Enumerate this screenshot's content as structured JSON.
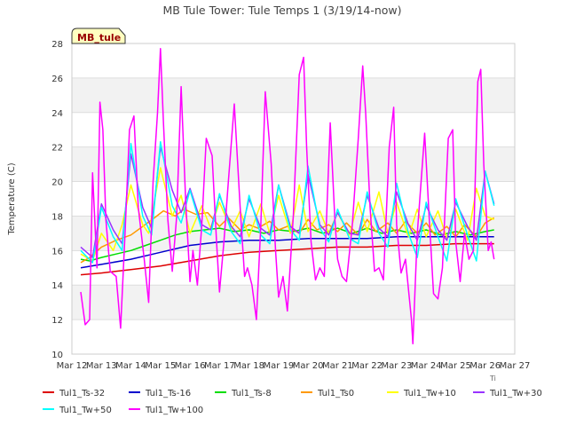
{
  "chart_data": {
    "type": "line",
    "title": "MB Tule Tower: Tule Temps 1 (3/19/14-now)",
    "xlabel": "",
    "ylabel": "Temperature (C)",
    "station_label": "MB_tule",
    "corner_mark": "Ti",
    "x_ticks": [
      {
        "day": 12,
        "label": "Mar 12"
      },
      {
        "day": 13,
        "label": "Mar 13"
      },
      {
        "day": 14,
        "label": "Mar 14"
      },
      {
        "day": 15,
        "label": "Mar 15"
      },
      {
        "day": 16,
        "label": "Mar 16"
      },
      {
        "day": 17,
        "label": "Mar 17"
      },
      {
        "day": 18,
        "label": "Mar 18"
      },
      {
        "day": 19,
        "label": "Mar 19"
      },
      {
        "day": 20,
        "label": "Mar 20"
      },
      {
        "day": 21,
        "label": "Mar 21"
      },
      {
        "day": 22,
        "label": "Mar 22"
      },
      {
        "day": 23,
        "label": "Mar 23"
      },
      {
        "day": 24,
        "label": "Mar 24"
      },
      {
        "day": 25,
        "label": "Mar 25"
      },
      {
        "day": 26,
        "label": "Mar 26"
      },
      {
        "day": 27,
        "label": "Mar 27"
      }
    ],
    "xlim": [
      12,
      27
    ],
    "y_ticks": [
      10,
      12,
      14,
      16,
      18,
      20,
      22,
      24,
      26,
      28
    ],
    "ylim": [
      10,
      28
    ],
    "grid": true,
    "legend_position": "bottom",
    "series": [
      {
        "name": "Tul1_Ts-32",
        "color": "#dd0000",
        "x": [
          12.3,
          13,
          14,
          15,
          16,
          17,
          18,
          19,
          20,
          21,
          22,
          23,
          24,
          25,
          26,
          26.3
        ],
        "y": [
          14.6,
          14.7,
          14.9,
          15.1,
          15.4,
          15.7,
          15.9,
          16.0,
          16.1,
          16.2,
          16.2,
          16.3,
          16.3,
          16.4,
          16.4,
          16.4
        ]
      },
      {
        "name": "Tul1_Ts-16",
        "color": "#0000cc",
        "x": [
          12.3,
          13,
          14,
          15,
          16,
          17,
          18,
          19,
          20,
          21,
          22,
          23,
          24,
          25,
          26,
          26.3
        ],
        "y": [
          15.0,
          15.2,
          15.5,
          15.9,
          16.3,
          16.5,
          16.6,
          16.6,
          16.7,
          16.7,
          16.7,
          16.8,
          16.8,
          16.8,
          16.8,
          16.8
        ]
      },
      {
        "name": "Tul1_Ts-8",
        "color": "#00dd00",
        "x": [
          12.3,
          12.6,
          13,
          13.5,
          14,
          14.5,
          15,
          15.5,
          16,
          16.5,
          17,
          17.5,
          18,
          18.5,
          19,
          19.5,
          20,
          20.5,
          21,
          21.5,
          22,
          22.5,
          23,
          23.5,
          24,
          24.5,
          25,
          25.5,
          26,
          26.3
        ],
        "y": [
          15.5,
          15.4,
          15.6,
          15.8,
          16.0,
          16.3,
          16.6,
          16.9,
          17.1,
          17.2,
          17.3,
          17.1,
          17.2,
          17.0,
          17.2,
          17.1,
          17.3,
          17.0,
          17.3,
          17.0,
          17.3,
          17.0,
          17.2,
          17.0,
          17.2,
          16.9,
          17.1,
          16.9,
          17.1,
          17.2
        ]
      },
      {
        "name": "Tul1_Ts0",
        "color": "#ff9900",
        "x": [
          12.3,
          12.6,
          13,
          13.5,
          14,
          14.4,
          14.8,
          15.1,
          15.5,
          15.8,
          16.2,
          16.6,
          17,
          17.3,
          17.7,
          18,
          18.3,
          18.7,
          19,
          19.3,
          19.7,
          20,
          20.3,
          20.7,
          21,
          21.3,
          21.7,
          22,
          22.3,
          22.7,
          23,
          23.3,
          23.7,
          24,
          24.3,
          24.7,
          25,
          25.3,
          25.7,
          26,
          26.3
        ],
        "y": [
          15.3,
          15.6,
          16.2,
          16.6,
          16.9,
          17.4,
          17.9,
          18.3,
          18.0,
          18.4,
          18.1,
          18.2,
          17.4,
          17.9,
          17.2,
          17.5,
          17.3,
          17.7,
          17.2,
          17.4,
          17.0,
          17.8,
          17.2,
          17.5,
          17.1,
          17.6,
          16.9,
          17.8,
          17.1,
          17.6,
          17.0,
          17.7,
          17.0,
          17.6,
          16.9,
          17.4,
          16.8,
          17.5,
          16.8,
          17.6,
          17.9
        ]
      },
      {
        "name": "Tul1_Tw+10",
        "color": "#ffff00",
        "x": [
          12.3,
          12.7,
          13,
          13.4,
          13.7,
          14,
          14.4,
          14.6,
          15,
          15.4,
          15.7,
          16,
          16.4,
          16.7,
          17,
          17.4,
          17.7,
          18,
          18.4,
          18.7,
          19,
          19.4,
          19.7,
          20,
          20.4,
          20.7,
          21,
          21.4,
          21.7,
          22,
          22.4,
          22.7,
          23,
          23.4,
          23.7,
          24,
          24.4,
          24.7,
          25,
          25.4,
          25.7,
          26,
          26.3
        ],
        "y": [
          15.8,
          15.4,
          17.0,
          16.0,
          17.5,
          19.8,
          17.5,
          17.0,
          20.8,
          18.0,
          19.2,
          17.0,
          18.6,
          17.3,
          18.8,
          17.2,
          18.3,
          16.8,
          18.7,
          17.0,
          19.2,
          17.0,
          19.8,
          17.1,
          18.3,
          17.0,
          18.2,
          16.9,
          18.8,
          17.1,
          19.4,
          17.0,
          18.8,
          16.8,
          18.4,
          16.8,
          18.3,
          16.7,
          18.4,
          16.6,
          19.6,
          18.0,
          17.8
        ]
      },
      {
        "name": "Tul1_Tw+30",
        "color": "#9933ff",
        "x": [
          12.3,
          12.7,
          13,
          13.4,
          13.7,
          14,
          14.4,
          14.7,
          15,
          15.4,
          15.7,
          16,
          16.4,
          16.7,
          17,
          17.4,
          17.7,
          18,
          18.4,
          18.7,
          19,
          19.4,
          19.7,
          20,
          20.4,
          20.7,
          21,
          21.4,
          21.7,
          22,
          22.4,
          22.7,
          23,
          23.4,
          23.7,
          24,
          24.4,
          24.7,
          25,
          25.4,
          25.7,
          26,
          26.3
        ],
        "y": [
          16.2,
          15.6,
          18.7,
          17.2,
          16.4,
          21.6,
          18.5,
          17.3,
          22.0,
          19.5,
          18.2,
          19.6,
          17.5,
          17.2,
          19.2,
          17.4,
          16.8,
          19.0,
          17.3,
          16.9,
          19.8,
          17.4,
          17.0,
          20.4,
          17.5,
          16.9,
          18.2,
          17.0,
          16.9,
          19.2,
          17.3,
          16.8,
          19.4,
          17.5,
          16.6,
          18.6,
          17.2,
          16.6,
          18.8,
          17.4,
          16.6,
          20.6,
          18.7
        ]
      },
      {
        "name": "Tul1_Tw+50",
        "color": "#00ffff",
        "x": [
          12.3,
          12.7,
          13,
          13.4,
          13.7,
          14,
          14.4,
          14.7,
          15,
          15.4,
          15.7,
          16,
          16.4,
          16.7,
          17,
          17.4,
          17.7,
          18,
          18.4,
          18.7,
          19,
          19.4,
          19.7,
          20,
          20.4,
          20.7,
          21,
          21.4,
          21.7,
          22,
          22.4,
          22.7,
          23,
          23.4,
          23.7,
          24,
          24.4,
          24.7,
          25,
          25.4,
          25.7,
          26,
          26.3
        ],
        "y": [
          16.0,
          15.3,
          18.5,
          16.8,
          16.0,
          22.2,
          18.0,
          16.9,
          22.3,
          18.6,
          17.6,
          19.5,
          17.2,
          16.9,
          19.3,
          17.1,
          16.4,
          19.2,
          16.9,
          16.4,
          19.8,
          17.2,
          16.6,
          20.9,
          17.3,
          16.5,
          18.4,
          16.7,
          16.4,
          19.4,
          17.0,
          16.2,
          19.9,
          17.0,
          15.6,
          18.8,
          16.8,
          15.4,
          19.0,
          16.9,
          15.4,
          20.6,
          18.6
        ]
      },
      {
        "name": "Tul1_Tw+100",
        "color": "#ff00ff",
        "x": [
          12.3,
          12.45,
          12.6,
          12.7,
          12.85,
          12.95,
          13.05,
          13.15,
          13.3,
          13.5,
          13.65,
          13.8,
          13.95,
          14.1,
          14.25,
          14.45,
          14.6,
          14.75,
          14.9,
          15.0,
          15.1,
          15.25,
          15.4,
          15.55,
          15.7,
          15.85,
          16.0,
          16.1,
          16.25,
          16.4,
          16.55,
          16.75,
          16.9,
          17.0,
          17.15,
          17.3,
          17.5,
          17.7,
          17.85,
          17.95,
          18.1,
          18.25,
          18.4,
          18.55,
          18.75,
          18.9,
          19.0,
          19.15,
          19.3,
          19.5,
          19.7,
          19.85,
          19.95,
          20.1,
          20.25,
          20.4,
          20.55,
          20.75,
          20.9,
          21.0,
          21.15,
          21.3,
          21.5,
          21.7,
          21.85,
          21.95,
          22.1,
          22.25,
          22.4,
          22.55,
          22.75,
          22.9,
          23.0,
          23.15,
          23.3,
          23.5,
          23.55,
          23.7,
          23.85,
          23.95,
          24.1,
          24.25,
          24.4,
          24.55,
          24.75,
          24.9,
          25.0,
          25.15,
          25.3,
          25.45,
          25.6,
          25.75,
          25.85,
          25.95,
          26.1,
          26.2,
          26.3
        ],
        "y": [
          13.6,
          11.7,
          12.0,
          20.5,
          15.0,
          24.6,
          23.0,
          17.8,
          14.8,
          14.5,
          11.5,
          17.0,
          23.0,
          23.8,
          18.5,
          15.5,
          13.0,
          20.0,
          24.0,
          27.7,
          23.5,
          17.8,
          14.8,
          18.0,
          25.5,
          19.0,
          14.2,
          16.0,
          14.0,
          17.5,
          22.5,
          21.5,
          16.5,
          13.6,
          16.5,
          20.0,
          24.5,
          18.5,
          14.5,
          15.0,
          14.0,
          12.0,
          17.5,
          25.2,
          21.0,
          16.0,
          13.3,
          14.5,
          12.5,
          18.0,
          26.2,
          27.2,
          22.0,
          16.5,
          14.3,
          15.0,
          14.5,
          23.4,
          18.0,
          15.5,
          14.5,
          14.2,
          17.5,
          22.5,
          26.7,
          24.0,
          18.5,
          14.8,
          15.0,
          14.3,
          22.0,
          24.3,
          17.5,
          14.7,
          15.5,
          12.0,
          10.6,
          17.0,
          20.5,
          22.8,
          18.0,
          13.5,
          13.2,
          15.0,
          22.5,
          23.0,
          16.5,
          14.2,
          17.0,
          15.5,
          16.0,
          25.8,
          26.5,
          21.0,
          16.0,
          16.5,
          15.5
        ]
      }
    ]
  }
}
